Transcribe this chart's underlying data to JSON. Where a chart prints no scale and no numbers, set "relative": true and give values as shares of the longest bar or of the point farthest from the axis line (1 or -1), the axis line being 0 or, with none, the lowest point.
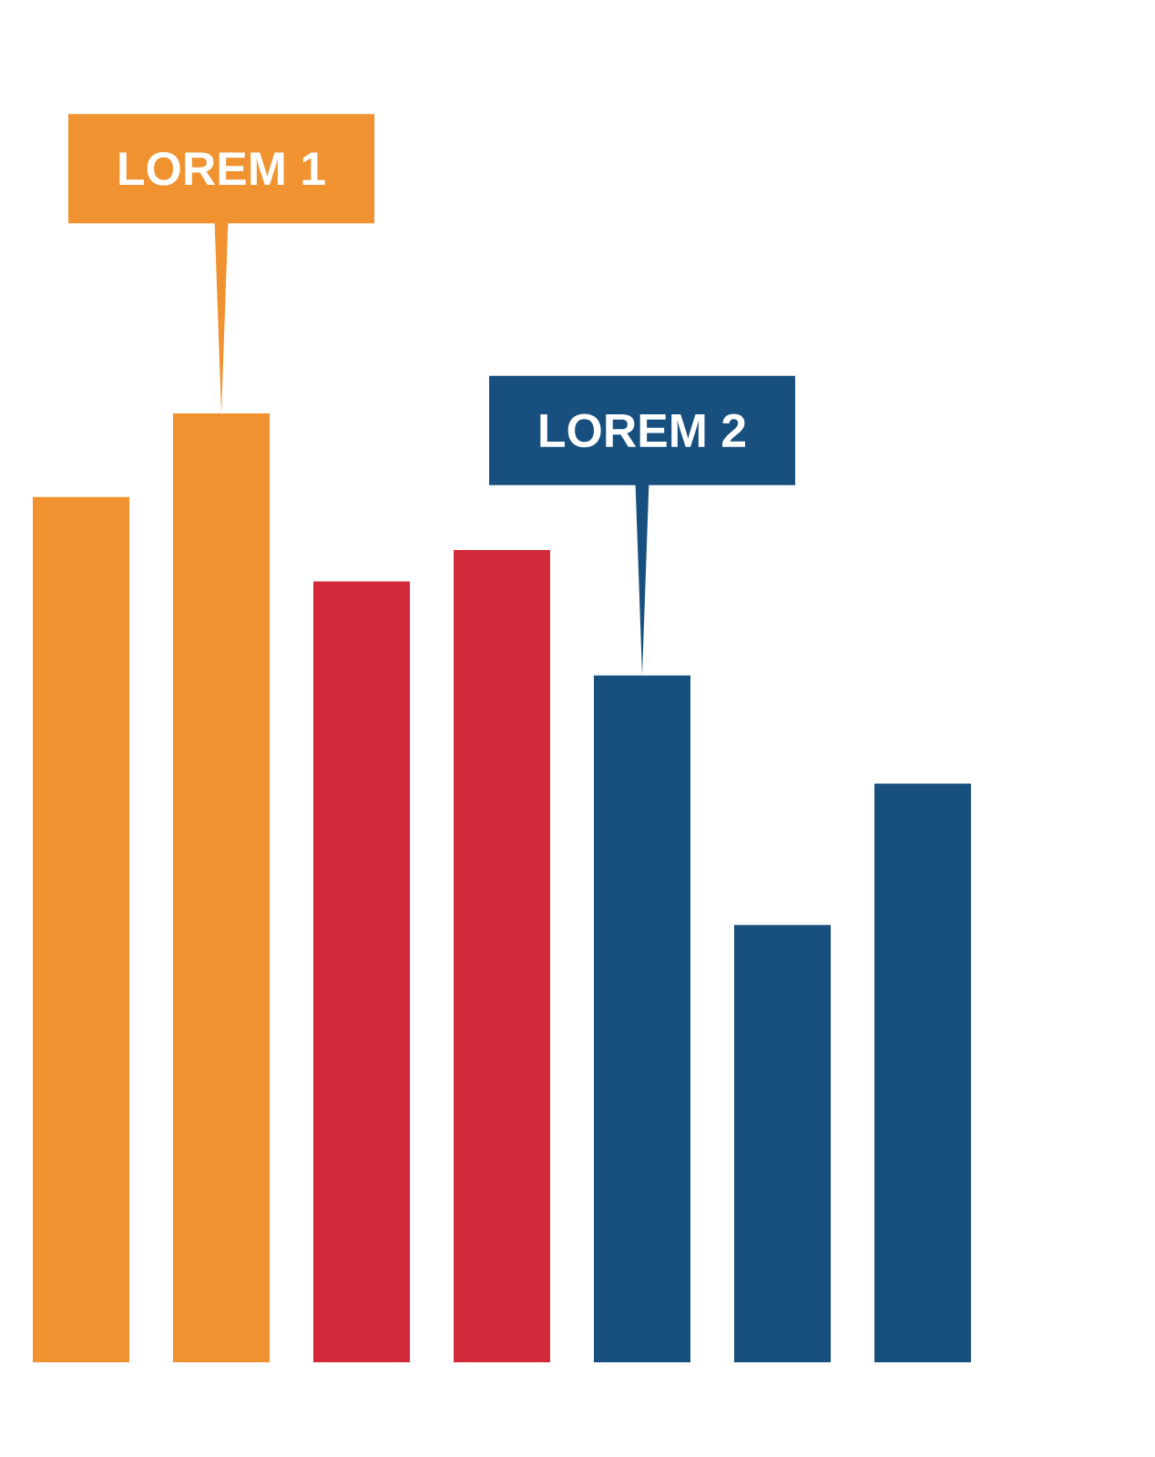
{
  "chart_data": {
    "type": "bar",
    "relative": true,
    "categories": [
      null,
      null,
      null,
      null,
      null,
      null,
      null
    ],
    "values": [
      0.912,
      1,
      0.823,
      0.856,
      0.724,
      0.461,
      0.61
    ],
    "colors": [
      "#f0922f",
      "#f0922f",
      "#d22a3a",
      "#d22a3a",
      "#17507e",
      "#17507e",
      "#17507e"
    ],
    "annotations": [
      {
        "text": "LOREM 1",
        "y": 1
      },
      {
        "text": "LOREM 2",
        "y": 0.724
      }
    ]
  }
}
